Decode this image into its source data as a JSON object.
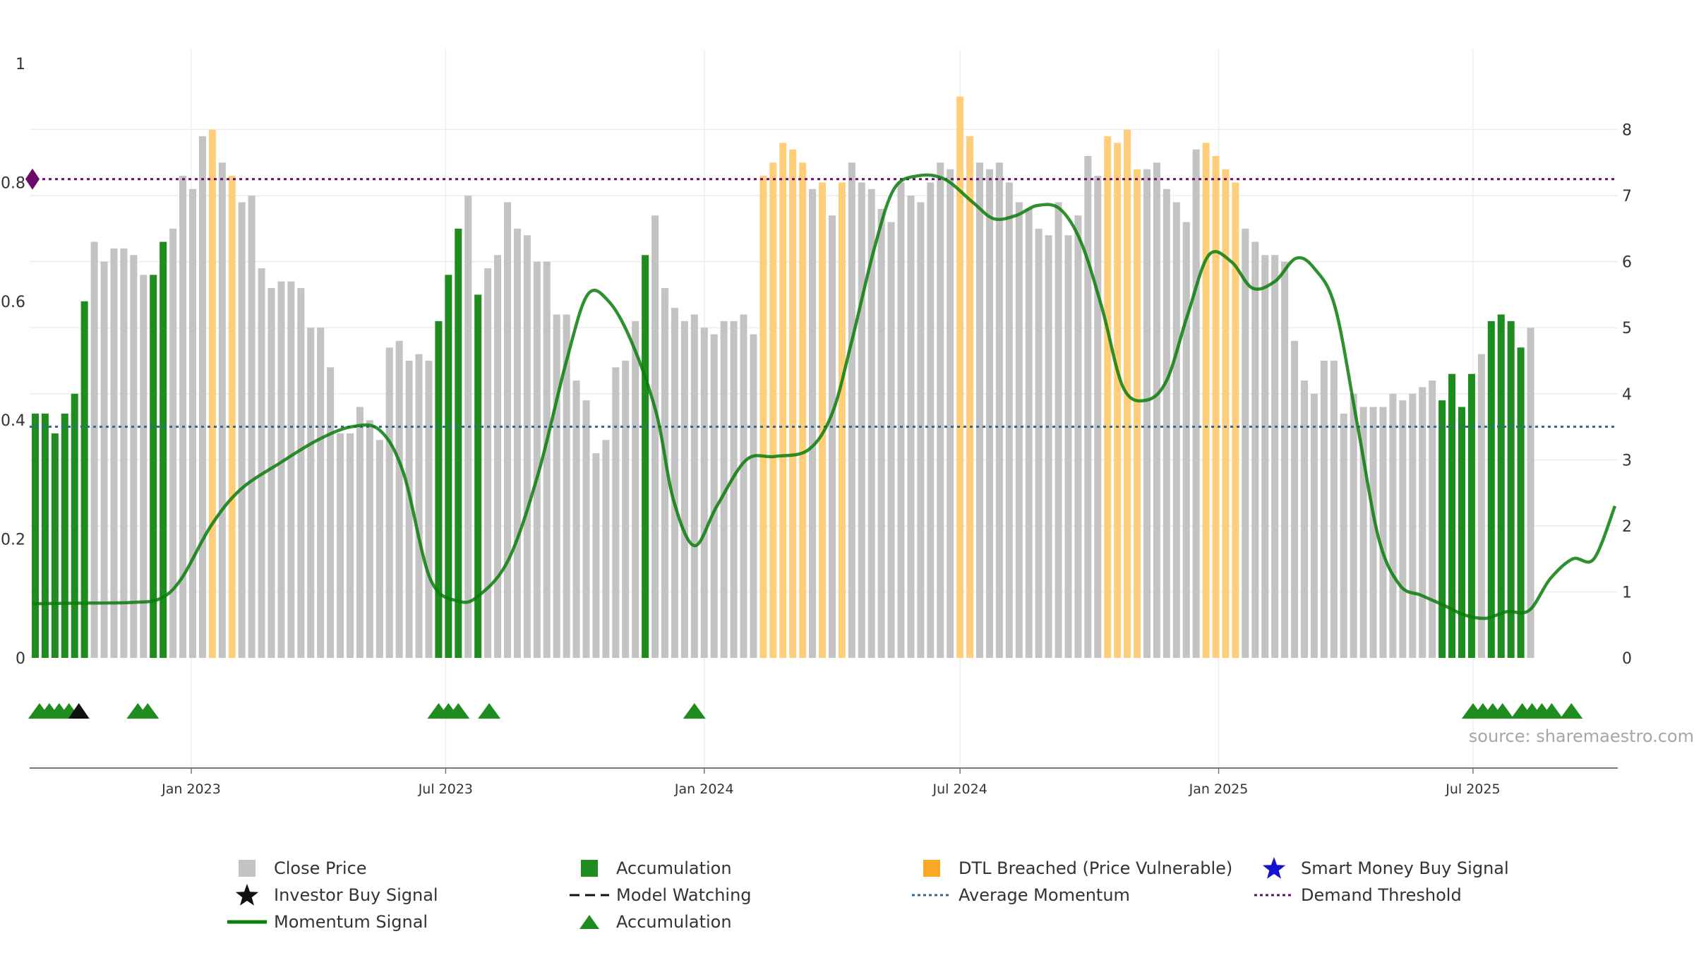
{
  "chart_data": {
    "type": "bar",
    "source": "source: sharemaestro.com",
    "left_axis": {
      "ylim": [
        0,
        1
      ],
      "ticks": [
        "0",
        "0.2",
        "0.4",
        "0.6",
        "0.8",
        "1"
      ]
    },
    "right_axis": {
      "ylim": [
        0,
        9
      ],
      "ticks": [
        "0",
        "1",
        "2",
        "3",
        "4",
        "5",
        "6",
        "7",
        "8"
      ]
    },
    "x_range": [
      "2022-09-08",
      "2025-10-12"
    ],
    "x_ticks": [
      {
        "date": "2023-01-01",
        "label": "Jan 2023"
      },
      {
        "date": "2023-07-01",
        "label": "Jul 2023"
      },
      {
        "date": "2024-01-01",
        "label": "Jan 2024"
      },
      {
        "date": "2024-07-01",
        "label": "Jul 2024"
      },
      {
        "date": "2025-01-01",
        "label": "Jan 2025"
      },
      {
        "date": "2025-07-01",
        "label": "Jul 2025"
      }
    ],
    "grid": true,
    "bar_start_date": "2022-09-12",
    "bar_interval_days": 7,
    "close_price": [
      3.7,
      3.7,
      3.4,
      3.7,
      4.0,
      5.4,
      6.3,
      6.0,
      6.2,
      6.2,
      6.1,
      5.8,
      5.8,
      6.3,
      6.5,
      7.3,
      7.1,
      7.9,
      8.0,
      7.5,
      7.3,
      6.9,
      7.0,
      5.9,
      5.6,
      5.7,
      5.7,
      5.6,
      5.0,
      5.0,
      4.4,
      3.4,
      3.4,
      3.8,
      3.6,
      3.3,
      4.7,
      4.8,
      4.5,
      4.6,
      4.5,
      5.1,
      5.8,
      6.5,
      7.0,
      5.5,
      5.9,
      6.1,
      6.9,
      6.5,
      6.4,
      6.0,
      6.0,
      5.2,
      5.2,
      4.2,
      3.9,
      3.1,
      3.3,
      4.4,
      4.5,
      5.1,
      6.1,
      6.7,
      5.6,
      5.3,
      5.1,
      5.2,
      5.0,
      4.9,
      5.1,
      5.1,
      5.2,
      4.9,
      7.3,
      7.5,
      7.8,
      7.7,
      7.5,
      7.1,
      7.2,
      6.7,
      7.2,
      7.5,
      7.2,
      7.1,
      6.8,
      6.6,
      7.2,
      7.0,
      6.9,
      7.2,
      7.5,
      7.4,
      8.5,
      7.9,
      7.5,
      7.4,
      7.5,
      7.2,
      6.9,
      6.8,
      6.5,
      6.4,
      6.9,
      6.4,
      6.7,
      7.6,
      7.3,
      7.9,
      7.8,
      8.0,
      7.4,
      7.4,
      7.5,
      7.1,
      6.9,
      6.6,
      7.7,
      7.8,
      7.6,
      7.4,
      7.2,
      6.5,
      6.3,
      6.1,
      6.1,
      6.0,
      4.8,
      4.2,
      4.0,
      4.5,
      4.5,
      3.7,
      4.0,
      3.8,
      3.8,
      3.8,
      4.0,
      3.9,
      4.0,
      4.1,
      4.2,
      3.9,
      4.3,
      3.8,
      4.3,
      4.6,
      5.1,
      5.2,
      5.1,
      4.7,
      5.0
    ],
    "bar_type": [
      "acc",
      "acc",
      "acc",
      "acc",
      "acc",
      "acc",
      "close",
      "close",
      "close",
      "close",
      "close",
      "close",
      "acc",
      "acc",
      "close",
      "close",
      "close",
      "close",
      "dtl",
      "close",
      "dtl",
      "close",
      "close",
      "close",
      "close",
      "close",
      "close",
      "close",
      "close",
      "close",
      "close",
      "close",
      "close",
      "close",
      "close",
      "close",
      "close",
      "close",
      "close",
      "close",
      "close",
      "acc",
      "acc",
      "acc",
      "close",
      "acc",
      "close",
      "close",
      "close",
      "close",
      "close",
      "close",
      "close",
      "close",
      "close",
      "close",
      "close",
      "close",
      "close",
      "close",
      "close",
      "close",
      "acc",
      "close",
      "close",
      "close",
      "close",
      "close",
      "close",
      "close",
      "close",
      "close",
      "close",
      "close",
      "dtl",
      "dtl",
      "dtl",
      "dtl",
      "dtl",
      "close",
      "dtl",
      "close",
      "dtl",
      "close",
      "close",
      "close",
      "close",
      "close",
      "close",
      "close",
      "close",
      "close",
      "close",
      "close",
      "dtl",
      "dtl",
      "close",
      "close",
      "close",
      "close",
      "close",
      "close",
      "close",
      "close",
      "close",
      "close",
      "close",
      "close",
      "close",
      "dtl",
      "dtl",
      "dtl",
      "dtl",
      "close",
      "close",
      "close",
      "close",
      "close",
      "close",
      "dtl",
      "dtl",
      "dtl",
      "dtl",
      "close",
      "close",
      "close",
      "close",
      "close",
      "close",
      "close",
      "close",
      "close",
      "close",
      "close",
      "close",
      "close",
      "close",
      "close",
      "close",
      "close",
      "close",
      "close",
      "close",
      "acc",
      "acc",
      "acc",
      "acc",
      "close",
      "acc",
      "acc",
      "acc",
      "acc",
      "close",
      "acc",
      "close"
    ],
    "momentum_signal": {
      "points": [
        [
          "2022-09-10",
          0.82
        ],
        [
          "2022-10-15",
          0.83
        ],
        [
          "2022-11-20",
          0.84
        ],
        [
          "2022-12-10",
          0.9
        ],
        [
          "2022-12-25",
          1.2
        ],
        [
          "2023-01-15",
          2.0
        ],
        [
          "2023-02-05",
          2.55
        ],
        [
          "2023-03-05",
          2.95
        ],
        [
          "2023-04-01",
          3.3
        ],
        [
          "2023-04-25",
          3.5
        ],
        [
          "2023-05-15",
          3.45
        ],
        [
          "2023-06-01",
          2.8
        ],
        [
          "2023-06-20",
          1.2
        ],
        [
          "2023-07-10",
          0.86
        ],
        [
          "2023-07-25",
          0.95
        ],
        [
          "2023-08-15",
          1.5
        ],
        [
          "2023-09-05",
          2.8
        ],
        [
          "2023-09-25",
          4.5
        ],
        [
          "2023-10-10",
          5.5
        ],
        [
          "2023-10-25",
          5.4
        ],
        [
          "2023-11-10",
          4.8
        ],
        [
          "2023-11-28",
          3.7
        ],
        [
          "2023-12-10",
          2.4
        ],
        [
          "2023-12-25",
          1.7
        ],
        [
          "2024-01-10",
          2.3
        ],
        [
          "2024-01-31",
          3.0
        ],
        [
          "2024-02-20",
          3.05
        ],
        [
          "2024-03-15",
          3.15
        ],
        [
          "2024-04-01",
          3.7
        ],
        [
          "2024-04-15",
          4.8
        ],
        [
          "2024-05-01",
          6.2
        ],
        [
          "2024-05-15",
          7.1
        ],
        [
          "2024-06-01",
          7.3
        ],
        [
          "2024-06-20",
          7.25
        ],
        [
          "2024-07-10",
          6.9
        ],
        [
          "2024-07-25",
          6.65
        ],
        [
          "2024-08-10",
          6.7
        ],
        [
          "2024-08-25",
          6.85
        ],
        [
          "2024-09-10",
          6.8
        ],
        [
          "2024-09-25",
          6.3
        ],
        [
          "2024-10-10",
          5.3
        ],
        [
          "2024-10-25",
          4.1
        ],
        [
          "2024-11-10",
          3.9
        ],
        [
          "2024-11-25",
          4.2
        ],
        [
          "2024-12-10",
          5.2
        ],
        [
          "2024-12-25",
          6.1
        ],
        [
          "2025-01-10",
          6.0
        ],
        [
          "2025-01-25",
          5.6
        ],
        [
          "2025-02-10",
          5.7
        ],
        [
          "2025-02-25",
          6.05
        ],
        [
          "2025-03-10",
          5.9
        ],
        [
          "2025-03-25",
          5.3
        ],
        [
          "2025-04-10",
          3.5
        ],
        [
          "2025-04-25",
          1.8
        ],
        [
          "2025-05-10",
          1.1
        ],
        [
          "2025-05-25",
          0.95
        ],
        [
          "2025-06-10",
          0.8
        ],
        [
          "2025-06-25",
          0.65
        ],
        [
          "2025-07-10",
          0.6
        ],
        [
          "2025-07-25",
          0.7
        ],
        [
          "2025-08-10",
          0.72
        ],
        [
          "2025-08-25",
          1.2
        ],
        [
          "2025-09-10",
          1.5
        ],
        [
          "2025-09-25",
          1.5
        ],
        [
          "2025-10-10",
          2.3
        ]
      ]
    },
    "average_momentum": 3.5,
    "demand_threshold": 7.25,
    "demand_threshold_marker_date": "2022-09-10",
    "accumulation_markers": [
      "2022-09-15",
      "2022-09-22",
      "2022-09-29",
      "2022-10-06",
      "2022-11-24",
      "2022-12-01",
      "2023-06-26",
      "2023-07-03",
      "2023-07-10",
      "2023-08-01",
      "2023-12-25",
      "2025-07-01",
      "2025-07-08",
      "2025-07-15",
      "2025-07-22",
      "2025-08-05",
      "2025-08-12",
      "2025-08-19",
      "2025-08-26",
      "2025-09-09"
    ],
    "investor_buy_markers": [
      "2022-10-13"
    ],
    "colors": {
      "close": "#c3c3c3",
      "acc": "#1e8c1e",
      "dtl": "#ffce7a",
      "momentum": "#0a7d0a",
      "avg_momentum": "#2b6a9a",
      "threshold": "#6b0a6b",
      "star_buy": "#111111",
      "smart_buy": "#1414d0"
    }
  },
  "legend": [
    {
      "label": "Close Price",
      "icon": "gray-square"
    },
    {
      "label": "Accumulation",
      "icon": "green-square"
    },
    {
      "label": "DTL Breached (Price Vulnerable)",
      "icon": "orange-square"
    },
    {
      "label": "Smart Money Buy Signal",
      "icon": "blue-star"
    },
    {
      "label": "Investor Buy Signal",
      "icon": "black-star"
    },
    {
      "label": "Model Watching",
      "icon": "black-dash"
    },
    {
      "label": "Average Momentum",
      "icon": "blue-dotted"
    },
    {
      "label": "Demand Threshold",
      "icon": "purple-dotted"
    },
    {
      "label": "Momentum Signal",
      "icon": "green-line"
    },
    {
      "label": "Accumulation",
      "icon": "green-triangle"
    }
  ]
}
